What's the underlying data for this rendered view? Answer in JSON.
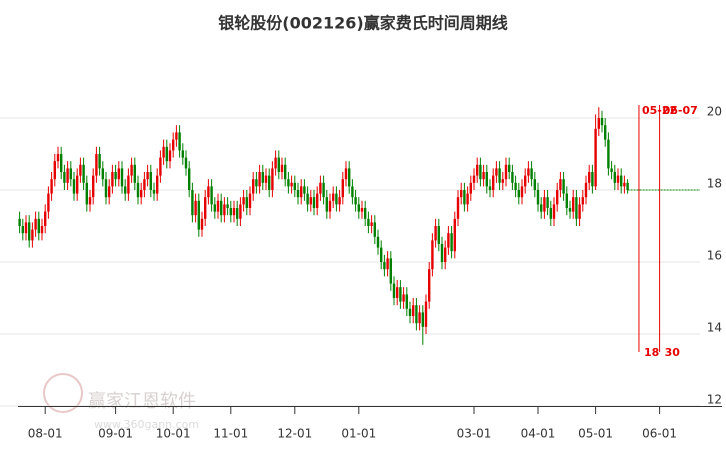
{
  "chart_data": {
    "type": "candlestick",
    "title": "银轮股份(002126)赢家费氏时间周期线",
    "watermark": "赢家江恩软件",
    "watermark_url": "www.360gann.com",
    "up_color": "#e60000",
    "down_color": "#008000",
    "ylim": [
      12,
      21
    ],
    "yticks": [
      12,
      14,
      16,
      18,
      20
    ],
    "grid": true,
    "categories": [
      null,
      null,
      null,
      null,
      null,
      null,
      null,
      null,
      "08-01",
      null,
      null,
      null,
      null,
      null,
      null,
      null,
      null,
      null,
      null,
      null,
      null,
      null,
      null,
      null,
      null,
      null,
      null,
      null,
      null,
      null,
      "09-01",
      null,
      null,
      null,
      null,
      null,
      null,
      null,
      null,
      null,
      null,
      null,
      null,
      null,
      null,
      null,
      null,
      null,
      "10-01",
      null,
      null,
      null,
      null,
      null,
      null,
      null,
      null,
      null,
      null,
      null,
      null,
      null,
      null,
      null,
      null,
      null,
      "11-01",
      null,
      null,
      null,
      null,
      null,
      null,
      null,
      null,
      null,
      null,
      null,
      null,
      null,
      null,
      null,
      null,
      null,
      null,
      null,
      "12-01",
      null,
      null,
      null,
      null,
      null,
      null,
      null,
      null,
      null,
      null,
      null,
      null,
      null,
      null,
      null,
      null,
      null,
      null,
      null,
      "01-01",
      null,
      null,
      null,
      null,
      null,
      null,
      null,
      null,
      null,
      null,
      null,
      null,
      null,
      null,
      null,
      null,
      null,
      null,
      null,
      null,
      null,
      null,
      null,
      null,
      null,
      null,
      null,
      null,
      null,
      null,
      null,
      null,
      null,
      null,
      null,
      "03-01",
      null,
      null,
      null,
      null,
      null,
      null,
      null,
      null,
      null,
      null,
      null,
      null,
      null,
      null,
      null,
      null,
      null,
      null,
      null,
      "04-01",
      null,
      null,
      null,
      null,
      null,
      null,
      null,
      null,
      null,
      null,
      null,
      null,
      null,
      null,
      null,
      null,
      null,
      "05-01",
      null,
      null,
      null,
      null,
      null,
      null,
      null,
      null,
      null,
      null,
      null,
      null,
      null,
      null,
      null,
      null,
      null,
      null,
      null,
      "06-01",
      null,
      null,
      null,
      null,
      null,
      null,
      null,
      null,
      null,
      null,
      null,
      null,
      null,
      null,
      null,
      null,
      null,
      null,
      null
    ],
    "open": [
      17.2,
      17.0,
      16.8,
      17.1,
      16.6,
      16.9,
      17.2,
      16.8,
      17.0,
      17.4,
      17.9,
      18.3,
      18.8,
      19.0,
      18.5,
      18.2,
      18.6,
      18.3,
      17.9,
      18.4,
      18.7,
      18.2,
      17.6,
      17.8,
      18.4,
      19.0,
      18.6,
      18.3,
      17.8,
      18.1,
      18.5,
      18.3,
      18.6,
      18.1,
      17.9,
      18.4,
      18.7,
      18.2,
      17.8,
      18.0,
      18.3,
      18.5,
      18.0,
      17.9,
      18.4,
      18.9,
      19.2,
      18.8,
      19.1,
      19.4,
      19.6,
      19.1,
      18.9,
      18.6,
      18.0,
      17.3,
      17.7,
      16.9,
      17.2,
      17.8,
      18.1,
      17.6,
      17.4,
      17.7,
      17.3,
      17.6,
      17.5,
      17.3,
      17.5,
      17.2,
      17.6,
      17.8,
      17.5,
      17.9,
      18.3,
      18.1,
      18.5,
      18.2,
      18.4,
      18.0,
      18.6,
      18.9,
      18.5,
      18.7,
      18.3,
      18.1,
      18.2,
      18.0,
      17.8,
      18.1,
      17.9,
      17.6,
      17.8,
      17.5,
      17.9,
      18.2,
      17.8,
      17.4,
      17.7,
      17.9,
      17.6,
      17.8,
      18.3,
      18.6,
      18.1,
      17.8,
      17.6,
      17.4,
      17.5,
      17.2,
      17.0,
      17.1,
      16.7,
      16.4,
      16.0,
      15.8,
      16.1,
      15.4,
      15.0,
      15.3,
      14.9,
      15.1,
      14.7,
      14.5,
      14.8,
      14.3,
      14.6,
      14.2,
      14.9,
      15.8,
      16.6,
      17.0,
      16.5,
      16.0,
      16.4,
      16.8,
      16.3,
      17.2,
      17.8,
      18.0,
      17.6,
      17.9,
      18.2,
      18.4,
      18.7,
      18.3,
      18.5,
      18.1,
      18.0,
      18.4,
      18.6,
      18.2,
      18.3,
      18.7,
      18.5,
      18.2,
      18.0,
      17.8,
      18.1,
      18.4,
      18.6,
      18.3,
      18.0,
      17.6,
      17.4,
      17.8,
      17.5,
      17.2,
      17.6,
      18.0,
      18.3,
      17.9,
      17.5,
      17.4,
      17.8,
      17.2,
      17.6,
      17.8,
      18.2,
      18.5,
      18.1,
      19.7,
      20.0,
      19.8,
      19.4,
      18.6,
      18.5,
      18.2,
      18.4,
      18.1,
      18.2,
      null,
      null,
      null,
      null,
      null,
      null,
      null,
      null,
      null,
      null,
      null,
      null,
      null,
      null,
      null,
      null,
      null,
      null,
      null,
      null,
      null,
      null,
      null,
      null,
      null,
      null,
      null,
      null,
      null
    ],
    "high": [
      17.4,
      17.2,
      17.3,
      17.3,
      17.1,
      17.4,
      17.4,
      17.2,
      17.6,
      18.1,
      18.5,
      19.0,
      19.2,
      19.2,
      18.7,
      18.8,
      18.8,
      18.5,
      18.6,
      18.9,
      18.9,
      18.4,
      18.0,
      18.6,
      19.2,
      19.2,
      18.8,
      18.5,
      18.3,
      18.7,
      18.7,
      18.8,
      18.8,
      18.3,
      18.6,
      18.9,
      18.9,
      18.4,
      18.2,
      18.5,
      18.7,
      18.7,
      18.2,
      18.6,
      19.1,
      19.4,
      19.4,
      19.3,
      19.6,
      19.8,
      19.8,
      19.3,
      19.1,
      18.8,
      18.2,
      17.9,
      17.9,
      17.4,
      18.0,
      18.3,
      18.3,
      17.8,
      17.9,
      17.9,
      17.8,
      17.8,
      17.7,
      17.7,
      17.7,
      17.8,
      18.0,
      18.0,
      18.1,
      18.5,
      18.5,
      18.7,
      18.7,
      18.6,
      18.6,
      18.8,
      19.1,
      19.1,
      18.9,
      18.9,
      18.5,
      18.4,
      18.4,
      18.2,
      18.3,
      18.3,
      18.1,
      18.0,
      18.0,
      18.1,
      18.4,
      18.4,
      18.0,
      17.9,
      18.1,
      18.1,
      18.0,
      18.5,
      18.8,
      18.8,
      18.3,
      18.0,
      17.8,
      17.7,
      17.7,
      17.4,
      17.3,
      17.3,
      16.9,
      16.6,
      16.2,
      16.3,
      16.3,
      15.6,
      15.5,
      15.5,
      15.3,
      15.3,
      14.9,
      15.0,
      15.0,
      14.8,
      14.8,
      15.1,
      16.0,
      16.8,
      17.2,
      17.2,
      16.7,
      16.6,
      17.0,
      17.0,
      17.4,
      18.0,
      18.2,
      18.2,
      18.1,
      18.4,
      18.6,
      18.9,
      18.9,
      18.7,
      18.7,
      18.3,
      18.6,
      18.8,
      18.8,
      18.5,
      18.9,
      18.9,
      18.7,
      18.4,
      18.2,
      18.3,
      18.6,
      18.8,
      18.8,
      18.5,
      18.2,
      17.8,
      18.0,
      18.0,
      17.7,
      17.8,
      18.2,
      18.5,
      18.5,
      18.1,
      17.7,
      18.0,
      18.0,
      17.8,
      18.0,
      18.4,
      18.7,
      18.7,
      20.1,
      20.3,
      20.2,
      20.0,
      19.6,
      18.8,
      18.7,
      18.6,
      18.6,
      18.4,
      18.3,
      null,
      null,
      null,
      null,
      null,
      null,
      null,
      null,
      null,
      null,
      null,
      null,
      null,
      null,
      null,
      null,
      null,
      null,
      null,
      null,
      null,
      null,
      null,
      null,
      null,
      null,
      null,
      null,
      null
    ],
    "low": [
      16.8,
      16.6,
      16.6,
      16.4,
      16.4,
      16.7,
      16.6,
      16.6,
      16.8,
      17.2,
      17.7,
      18.1,
      18.6,
      18.3,
      18.0,
      18.0,
      18.1,
      17.7,
      17.7,
      18.2,
      18.0,
      17.4,
      17.4,
      17.6,
      18.2,
      18.4,
      18.1,
      17.6,
      17.6,
      17.9,
      18.1,
      18.1,
      17.9,
      17.7,
      17.7,
      18.2,
      18.0,
      17.6,
      17.6,
      17.8,
      18.1,
      17.8,
      17.7,
      17.7,
      18.2,
      18.7,
      18.6,
      18.6,
      18.9,
      19.2,
      18.9,
      18.7,
      18.4,
      17.8,
      17.1,
      17.1,
      16.7,
      16.7,
      17.0,
      17.6,
      17.4,
      17.2,
      17.2,
      17.1,
      17.1,
      17.3,
      17.1,
      17.1,
      17.0,
      17.0,
      17.4,
      17.3,
      17.3,
      17.7,
      17.9,
      17.9,
      18.0,
      18.0,
      17.8,
      17.8,
      18.4,
      18.3,
      18.3,
      18.1,
      17.9,
      17.9,
      17.8,
      17.6,
      17.6,
      17.7,
      17.4,
      17.4,
      17.3,
      17.3,
      17.7,
      17.6,
      17.2,
      17.2,
      17.5,
      17.4,
      17.4,
      17.6,
      18.1,
      17.9,
      17.6,
      17.4,
      17.2,
      17.2,
      17.0,
      16.8,
      16.8,
      16.5,
      16.2,
      15.8,
      15.6,
      15.6,
      15.2,
      14.8,
      14.8,
      14.7,
      14.7,
      14.5,
      14.3,
      14.3,
      14.1,
      14.1,
      13.7,
      14.0,
      14.7,
      15.6,
      16.4,
      16.3,
      15.8,
      15.8,
      16.2,
      16.1,
      16.1,
      17.0,
      17.6,
      17.4,
      17.4,
      17.7,
      18.0,
      18.2,
      18.1,
      18.1,
      17.9,
      17.8,
      17.8,
      18.2,
      18.0,
      18.0,
      18.1,
      18.3,
      18.0,
      17.8,
      17.6,
      17.6,
      17.9,
      18.2,
      18.1,
      17.8,
      17.4,
      17.2,
      17.2,
      17.3,
      17.0,
      17.0,
      17.4,
      17.8,
      17.7,
      17.3,
      17.2,
      17.2,
      17.0,
      17.0,
      17.4,
      17.6,
      18.0,
      17.9,
      18.0,
      19.5,
      19.6,
      19.2,
      18.4,
      18.3,
      18.0,
      18.0,
      17.9,
      17.9,
      17.9,
      null,
      null,
      null,
      null,
      null,
      null,
      null,
      null,
      null,
      null,
      null,
      null,
      null,
      null,
      null,
      null,
      null,
      null,
      null,
      null,
      null,
      null,
      null,
      null,
      null,
      null,
      null,
      null,
      null
    ],
    "close": [
      17.0,
      16.8,
      17.1,
      16.6,
      16.9,
      17.2,
      16.8,
      17.0,
      17.4,
      17.9,
      18.3,
      18.8,
      19.0,
      18.5,
      18.2,
      18.6,
      18.3,
      17.9,
      18.4,
      18.7,
      18.2,
      17.6,
      17.8,
      18.4,
      19.0,
      18.6,
      18.3,
      17.8,
      18.1,
      18.5,
      18.3,
      18.6,
      18.1,
      17.9,
      18.4,
      18.7,
      18.2,
      17.8,
      18.0,
      18.3,
      18.5,
      18.0,
      17.9,
      18.4,
      18.9,
      19.2,
      18.8,
      19.1,
      19.4,
      19.6,
      19.1,
      18.9,
      18.6,
      18.0,
      17.3,
      17.7,
      16.9,
      17.2,
      17.8,
      18.1,
      17.6,
      17.4,
      17.7,
      17.3,
      17.6,
      17.5,
      17.3,
      17.5,
      17.2,
      17.6,
      17.8,
      17.5,
      17.9,
      18.3,
      18.1,
      18.5,
      18.2,
      18.4,
      18.0,
      18.6,
      18.9,
      18.5,
      18.7,
      18.3,
      18.1,
      18.2,
      18.0,
      17.8,
      18.1,
      17.9,
      17.6,
      17.8,
      17.5,
      17.9,
      18.2,
      17.8,
      17.4,
      17.7,
      17.9,
      17.6,
      17.8,
      18.3,
      18.6,
      18.1,
      17.8,
      17.6,
      17.4,
      17.5,
      17.2,
      17.0,
      17.1,
      16.7,
      16.4,
      16.0,
      15.8,
      16.1,
      15.4,
      15.0,
      15.3,
      14.9,
      15.1,
      14.7,
      14.5,
      14.8,
      14.3,
      14.6,
      14.2,
      14.9,
      15.8,
      16.6,
      17.0,
      16.5,
      16.0,
      16.4,
      16.8,
      16.3,
      17.2,
      17.8,
      18.0,
      17.6,
      17.9,
      18.2,
      18.4,
      18.7,
      18.3,
      18.5,
      18.1,
      18.0,
      18.4,
      18.6,
      18.2,
      18.3,
      18.7,
      18.5,
      18.2,
      18.0,
      17.8,
      18.1,
      18.4,
      18.6,
      18.3,
      18.0,
      17.6,
      17.4,
      17.8,
      17.5,
      17.2,
      17.6,
      18.0,
      18.3,
      17.9,
      17.5,
      17.4,
      17.8,
      17.2,
      17.6,
      17.8,
      18.2,
      18.5,
      18.1,
      19.7,
      20.0,
      19.8,
      19.4,
      18.6,
      18.5,
      18.2,
      18.4,
      18.1,
      18.2,
      18.0,
      null,
      null,
      null,
      null,
      null,
      null,
      null,
      null,
      null,
      null,
      null,
      null,
      null,
      null,
      null,
      null,
      null,
      null,
      null,
      null,
      null,
      null,
      null,
      null,
      null,
      null,
      null,
      null,
      null
    ],
    "cycle_lines": [
      {
        "date": "05-22",
        "days": 18
      },
      {
        "date": "06-07",
        "days": 30
      }
    ],
    "cycle_color": "#e60000"
  }
}
